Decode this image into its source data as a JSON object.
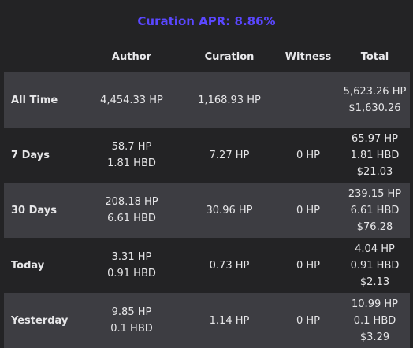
{
  "title": "Curation APR: 8.86%",
  "headers": {
    "author": "Author",
    "curation": "Curation",
    "witness": "Witness",
    "total": "Total"
  },
  "rows": [
    {
      "label": "All Time",
      "author": [
        "4,454.33 HP"
      ],
      "curation": "1,168.93 HP",
      "witness": "",
      "total": [
        "5,623.26 HP",
        "$1,630.26"
      ]
    },
    {
      "label": "7 Days",
      "author": [
        "58.7 HP",
        "1.81 HBD"
      ],
      "curation": "7.27 HP",
      "witness": "0 HP",
      "total": [
        "65.97 HP",
        "1.81 HBD",
        "$21.03"
      ]
    },
    {
      "label": "30 Days",
      "author": [
        "208.18 HP",
        "6.61 HBD"
      ],
      "curation": "30.96 HP",
      "witness": "0 HP",
      "total": [
        "239.15 HP",
        "6.61 HBD",
        "$76.28"
      ]
    },
    {
      "label": "Today",
      "author": [
        "3.31 HP",
        "0.91 HBD"
      ],
      "curation": "0.73 HP",
      "witness": "0 HP",
      "total": [
        "4.04 HP",
        "0.91 HBD",
        "$2.13"
      ]
    },
    {
      "label": "Yesterday",
      "author": [
        "9.85 HP",
        "0.1 HBD"
      ],
      "curation": "1.14 HP",
      "witness": "0 HP",
      "total": [
        "10.99 HP",
        "0.1 HBD",
        "$3.29"
      ]
    }
  ]
}
